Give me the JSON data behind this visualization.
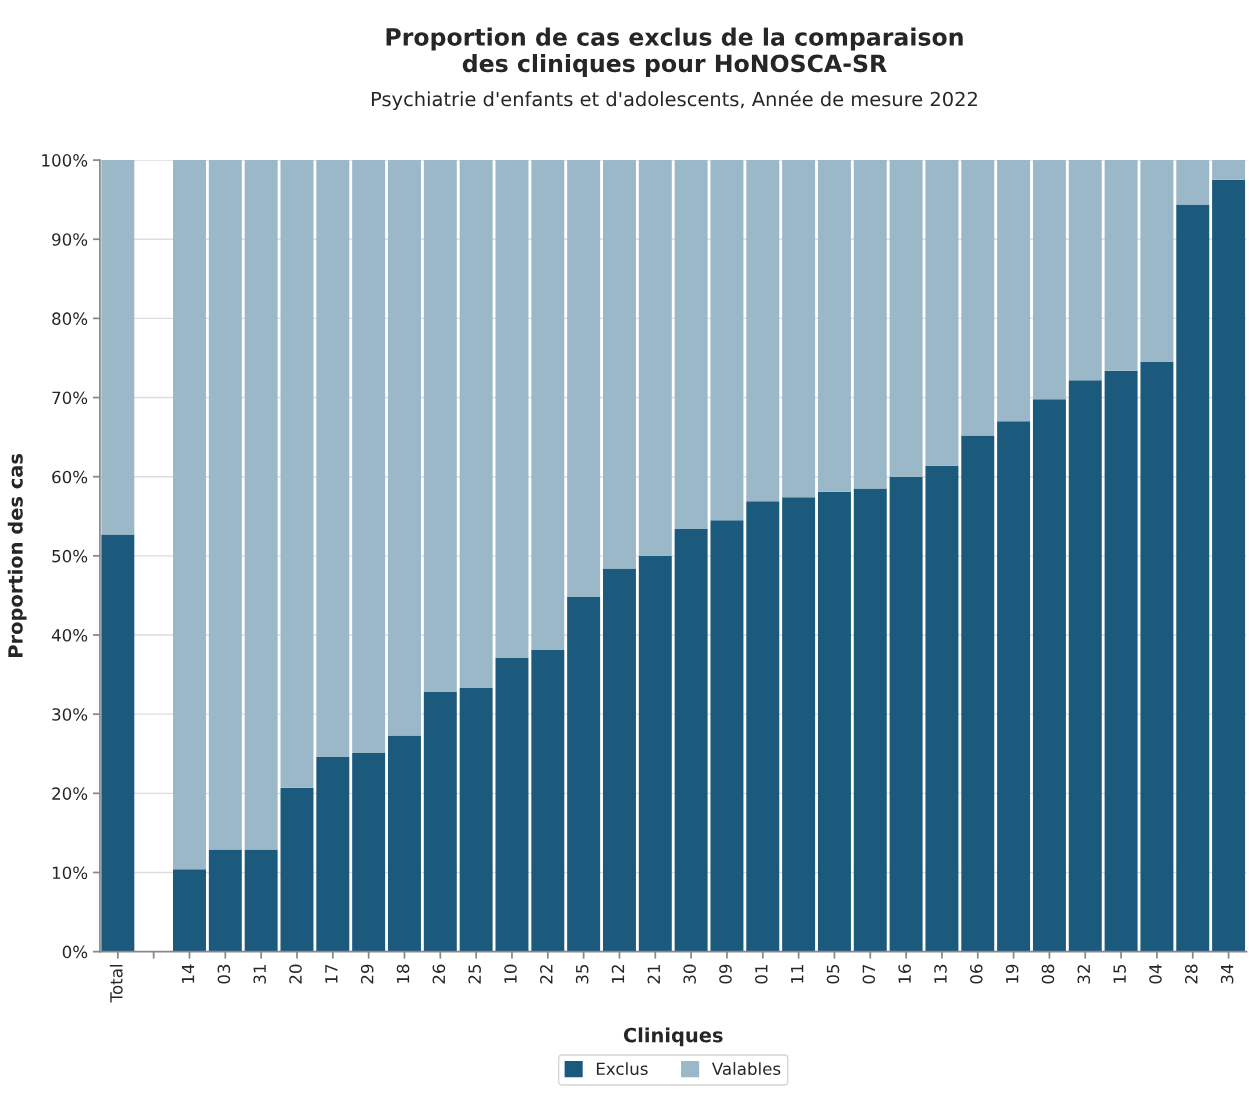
{
  "chart_data": {
    "type": "bar",
    "title": "Proportion de cas exclus de la comparaison\ndes cliniques pour HoNOSCA-SR",
    "subtitle": "Psychiatrie d'enfants et d'adolescents, Année de mesure 2022",
    "xlabel": "Cliniques",
    "ylabel": "Proportion des cas",
    "stacked": true,
    "categories": [
      "Total",
      null,
      "14",
      "03",
      "31",
      "20",
      "17",
      "29",
      "18",
      "26",
      "25",
      "10",
      "22",
      "35",
      "12",
      "21",
      "30",
      "09",
      "01",
      "11",
      "05",
      "07",
      "16",
      "13",
      "06",
      "19",
      "08",
      "32",
      "15",
      "04",
      "28",
      "34"
    ],
    "series": [
      {
        "name": "Exclus",
        "color": "#1b5a7d",
        "values": [
          52.7,
          null,
          10.4,
          12.9,
          12.9,
          20.7,
          24.6,
          25.1,
          27.3,
          32.8,
          33.3,
          37.1,
          38.1,
          44.8,
          48.4,
          50.0,
          53.4,
          54.5,
          56.9,
          57.4,
          58.1,
          58.5,
          60.0,
          61.4,
          65.2,
          67.0,
          69.8,
          72.2,
          73.4,
          74.5,
          94.4,
          97.5
        ]
      },
      {
        "name": "Valables",
        "color": "#9bb8c9",
        "values": [
          47.3,
          null,
          89.6,
          87.1,
          87.1,
          79.3,
          75.4,
          74.9,
          72.7,
          67.2,
          66.7,
          62.9,
          61.9,
          55.2,
          51.6,
          50.0,
          46.6,
          45.5,
          43.1,
          42.6,
          41.9,
          41.5,
          40.0,
          38.6,
          34.8,
          33.0,
          30.2,
          27.8,
          26.6,
          25.5,
          5.6,
          2.5
        ]
      }
    ],
    "ylim": [
      0,
      100
    ],
    "yticks": [
      {
        "value": 0,
        "label": "0%"
      },
      {
        "value": 10,
        "label": "10%"
      },
      {
        "value": 20,
        "label": "20%"
      },
      {
        "value": 30,
        "label": "30%"
      },
      {
        "value": 40,
        "label": "40%"
      },
      {
        "value": 50,
        "label": "50%"
      },
      {
        "value": 60,
        "label": "60%"
      },
      {
        "value": 70,
        "label": "70%"
      },
      {
        "value": 80,
        "label": "80%"
      },
      {
        "value": 90,
        "label": "90%"
      },
      {
        "value": 100,
        "label": "100%"
      }
    ],
    "grid": "y",
    "legend": "bottom"
  }
}
